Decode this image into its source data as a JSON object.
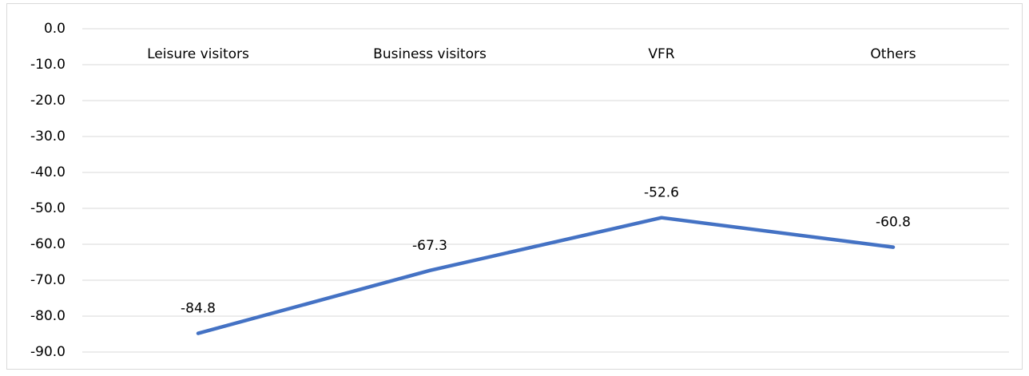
{
  "chart_data": {
    "type": "line",
    "categories": [
      "Leisure visitors",
      "Business visitors",
      "VFR",
      "Others"
    ],
    "series": [
      {
        "color": "#4472c4",
        "values": [
          -84.8,
          -67.3,
          -52.6,
          -60.8
        ]
      }
    ],
    "ylim": [
      -90,
      0
    ],
    "yticks": [
      {
        "value": 0,
        "label": "0.0"
      },
      {
        "value": -10,
        "label": "-10.0"
      },
      {
        "value": -20,
        "label": "-20.0"
      },
      {
        "value": -30,
        "label": "-30.0"
      },
      {
        "value": -40,
        "label": "-40.0"
      },
      {
        "value": -50,
        "label": "-50.0"
      },
      {
        "value": -60,
        "label": "-60.0"
      },
      {
        "value": -70,
        "label": "-70.0"
      },
      {
        "value": -80,
        "label": "-80.0"
      },
      {
        "value": -90,
        "label": "-90.0"
      }
    ],
    "grid": true
  }
}
